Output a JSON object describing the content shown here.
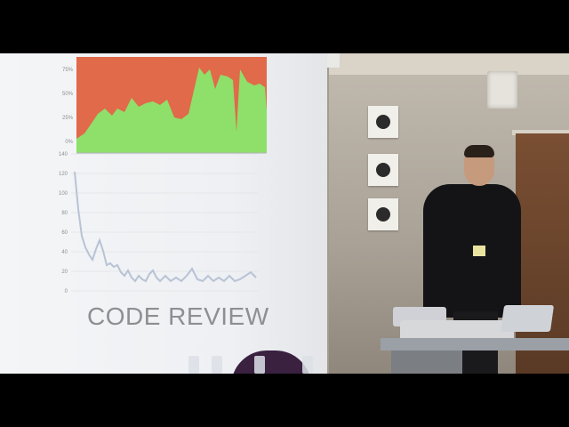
{
  "photo": {
    "slide": {
      "title": "CODE REVIEW",
      "top_chart_y_ticks": [
        "75%",
        "50%",
        "25%",
        "0%"
      ],
      "bottom_chart_y_ticks": [
        "140",
        "120",
        "100",
        "80",
        "60",
        "40",
        "20",
        "0"
      ]
    },
    "colors": {
      "area_red": "#e06a4a",
      "area_green": "#8ee06a",
      "line_blue": "#b8c3d6"
    }
  }
}
